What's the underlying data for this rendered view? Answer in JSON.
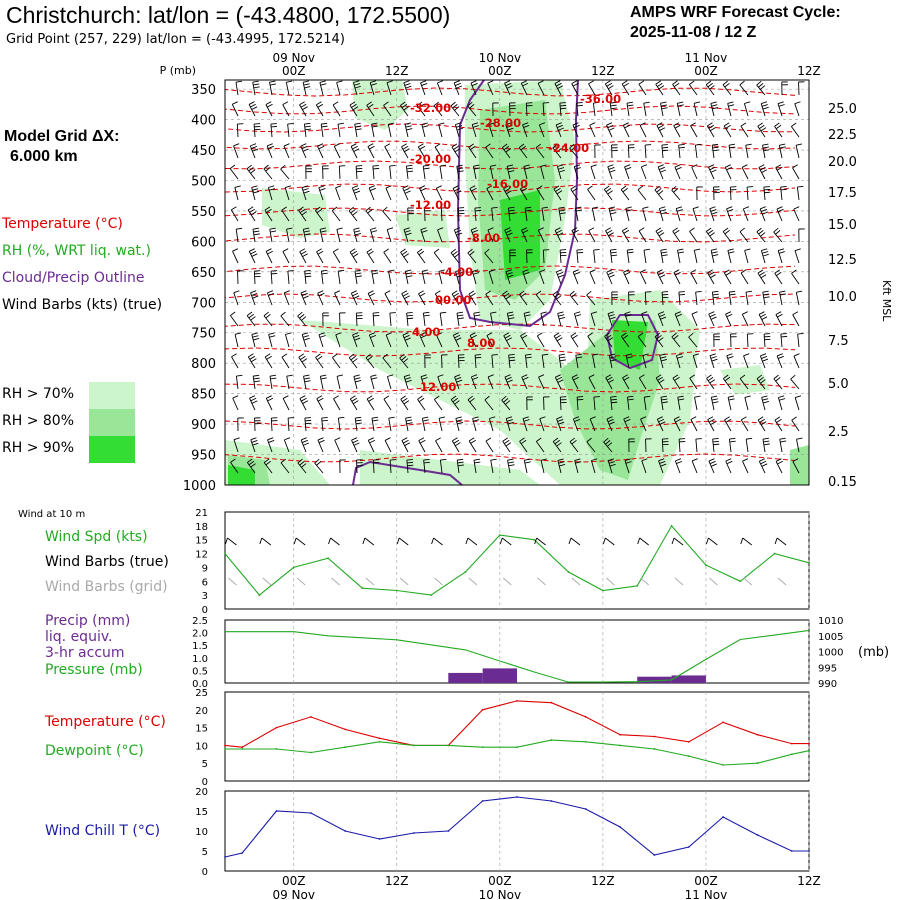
{
  "header": {
    "title": "Christchurch:  lat/lon = (-43.4800, 172.5500)",
    "subtitle": "Grid Point (257, 229) lat/lon = (-43.4995, 172.5214)",
    "cycle_line1": "AMPS WRF Forecast Cycle:",
    "cycle_line2": "2025-11-08 / 12  Z"
  },
  "legend": {
    "grid_dx_line1": "Model Grid ΔX:",
    "grid_dx_line2": "6.000 km",
    "temperature": "Temperature (°C)",
    "rh": "RH (%, WRT liq. wat.)",
    "cloud": "Cloud/Precip Outline",
    "wind": "Wind Barbs (kts) (true)",
    "rh70": "RH > 70%",
    "rh80": "RH > 80%",
    "rh90": "RH > 90%"
  },
  "colors": {
    "temperature": "#dd0000",
    "rh": "#22aa22",
    "cloud": "#6a2c91",
    "rh70": "#ccf5cc",
    "rh80": "#99e699",
    "rh90": "#33dd33",
    "chill": "#1a1aaa",
    "wind_grid": "#aaaaaa"
  },
  "time_axis": {
    "ticks": [
      "00Z",
      "12Z",
      "00Z",
      "12Z",
      "00Z",
      "12Z"
    ],
    "dates": [
      "09 Nov",
      "10 Nov",
      "11 Nov"
    ]
  },
  "chart_data": [
    {
      "type": "heatmap",
      "title": "",
      "ylabel_left": "P (mb)",
      "ylabel_right": "Kft MSL",
      "pressure_ticks": [
        "350",
        "400",
        "450",
        "500",
        "550",
        "600",
        "650",
        "700",
        "750",
        "800",
        "850",
        "900",
        "950",
        "1000"
      ],
      "height_ticks": [
        "25.0",
        "22.5",
        "20.0",
        "17.5",
        "15.0",
        "12.5",
        "10.0",
        "7.5",
        "5.0",
        "2.5",
        "0.15"
      ],
      "temperature_labels": [
        "-32.00",
        "-28.00",
        "-36.00",
        "-24.00",
        "-20.00",
        "-16.00",
        "-12.00",
        "-8.00",
        "-4.00",
        "00.00",
        "4.00",
        "8.00",
        "12.00"
      ]
    },
    {
      "type": "line",
      "title": "Wind at 10 m",
      "series": [
        {
          "name": "Wind Spd (kts)",
          "x_hours": [
            0,
            6,
            12,
            18,
            24,
            30,
            36,
            42,
            48,
            54,
            60,
            66,
            72,
            78,
            84,
            90,
            96,
            102
          ],
          "values": [
            12,
            3,
            9,
            11,
            4.5,
            4,
            3,
            8,
            16,
            15,
            8,
            4,
            5,
            18,
            9.5,
            6,
            12,
            10
          ]
        }
      ],
      "legend": [
        "Wind Spd (kts)",
        "Wind Barbs (true)",
        "Wind Barbs (grid)"
      ],
      "yticks": [
        "0",
        "3",
        "6",
        "9",
        "12",
        "15",
        "18",
        "21"
      ],
      "ylim": [
        0,
        21
      ]
    },
    {
      "type": "bar",
      "title": "",
      "legend": [
        "Precip (mm)",
        "liq. equiv.",
        "3-hr accum",
        "Pressure (mb)"
      ],
      "precip_bars": [
        {
          "start_h": 39,
          "end_h": 45,
          "value": 0.4
        },
        {
          "start_h": 45,
          "end_h": 51,
          "value": 0.58
        },
        {
          "start_h": 72,
          "end_h": 78,
          "value": 0.25
        },
        {
          "start_h": 78,
          "end_h": 84,
          "value": 0.3
        }
      ],
      "pressure_series": {
        "x_hours": [
          0,
          12,
          18,
          30,
          42,
          48,
          54,
          60,
          66,
          72,
          78,
          84,
          90,
          96,
          102
        ],
        "values": [
          1006.3,
          1006.3,
          1005,
          1003.7,
          1000.5,
          997,
          993.5,
          990.3,
          990.3,
          990.4,
          991,
          997.5,
          1003.8,
          1005.2,
          1006.7
        ]
      },
      "yticks_left": [
        "0.0",
        "0.5",
        "1.0",
        "1.5",
        "2.0",
        "2.5"
      ],
      "yticks_right": [
        "990",
        "995",
        "1000",
        "1005",
        "1010"
      ],
      "ylabel_right": "(mb)",
      "ylim": [
        0,
        2.5
      ],
      "ylim_right": [
        990,
        1010
      ]
    },
    {
      "type": "line",
      "title": "",
      "series": [
        {
          "name": "Temperature (°C)",
          "x_hours": [
            0,
            3,
            9,
            15,
            21,
            27,
            33,
            39,
            45,
            51,
            57,
            63,
            69,
            75,
            81,
            87,
            93,
            99,
            102
          ],
          "values": [
            10,
            9.5,
            15,
            18,
            14.5,
            12,
            10,
            10,
            20,
            22.5,
            22,
            18,
            13,
            12.5,
            11,
            16.5,
            13,
            10.5,
            10.5
          ]
        },
        {
          "name": "Dewpoint (°C)",
          "x_hours": [
            0,
            3,
            9,
            15,
            21,
            27,
            33,
            39,
            45,
            51,
            57,
            63,
            69,
            75,
            81,
            87,
            93,
            99,
            102
          ],
          "values": [
            9,
            9,
            9,
            8,
            9.5,
            11,
            10,
            10,
            9.5,
            9.5,
            11.5,
            11,
            10,
            9,
            7,
            4.5,
            5,
            7.5,
            8.5
          ]
        }
      ],
      "yticks": [
        "0",
        "5",
        "10",
        "15",
        "20",
        "25"
      ],
      "ylim": [
        0,
        25
      ]
    },
    {
      "type": "line",
      "title": "",
      "series": [
        {
          "name": "Wind Chill T (°C)",
          "x_hours": [
            0,
            3,
            9,
            15,
            21,
            27,
            33,
            39,
            45,
            51,
            57,
            63,
            69,
            75,
            81,
            87,
            93,
            99,
            102
          ],
          "values": [
            3.5,
            4.5,
            15,
            14.5,
            10,
            8,
            9.5,
            10,
            17.5,
            18.5,
            17.5,
            15.5,
            11,
            4,
            6,
            13.5,
            9,
            5,
            5
          ]
        }
      ],
      "yticks": [
        "0",
        "5",
        "10",
        "15",
        "20"
      ],
      "ylim": [
        0,
        20
      ]
    }
  ]
}
